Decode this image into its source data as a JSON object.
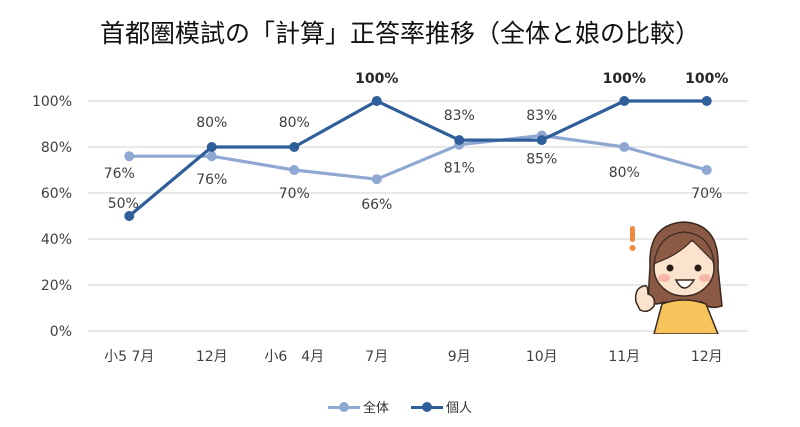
{
  "chart_data": {
    "type": "line",
    "title": "首都圏模試の「計算」正答率推移（全体と娘の比較）",
    "categories": [
      "小5 7月",
      "12月",
      "小6　4月",
      "7月",
      "9月",
      "10月",
      "11月",
      "12月"
    ],
    "series": [
      {
        "name": "全体",
        "color": "#8FA8D2",
        "values": [
          76,
          76,
          70,
          66,
          81,
          85,
          80,
          70
        ],
        "labels": [
          "76%",
          "76%",
          "70%",
          "66%",
          "81%",
          "85%",
          "80%",
          "70%"
        ]
      },
      {
        "name": "個人",
        "color": "#2F5F9B",
        "values": [
          50,
          80,
          80,
          100,
          83,
          83,
          100,
          100
        ],
        "labels": [
          "50%",
          "80%",
          "80%",
          "100%",
          "83%",
          "83%",
          "100%",
          "100%"
        ]
      }
    ],
    "yticks": [
      "0%",
      "20%",
      "40%",
      "60%",
      "80%",
      "100%"
    ],
    "ylim": [
      0,
      100
    ],
    "xlabel": "",
    "ylabel": "",
    "grid": true,
    "legend_position": "bottom"
  },
  "legend": [
    {
      "label": "全体",
      "color": "#8FA8D2"
    },
    {
      "label": "個人",
      "color": "#2F5F9B"
    }
  ],
  "decoration": {
    "exclamation": "!",
    "exclamation_color": "#F08A3C"
  }
}
